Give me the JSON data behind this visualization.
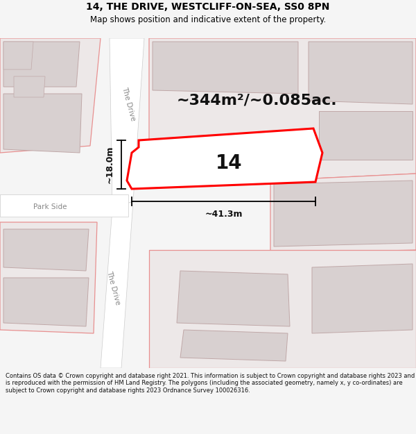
{
  "title": "14, THE DRIVE, WESTCLIFF-ON-SEA, SS0 8PN",
  "subtitle": "Map shows position and indicative extent of the property.",
  "footer": "Contains OS data © Crown copyright and database right 2021. This information is subject to Crown copyright and database rights 2023 and is reproduced with the permission of HM Land Registry. The polygons (including the associated geometry, namely x, y co-ordinates) are subject to Crown copyright and database rights 2023 Ordnance Survey 100026316.",
  "area_label": "~344m²/~0.085ac.",
  "number_label": "14",
  "width_label": "~41.3m",
  "height_label": "~18.0m",
  "street_label_upper": "The Drive",
  "street_label_lower": "The Drive",
  "street_label_parkside": "Park Side",
  "bg_color": "#f5f5f5",
  "map_bg": "#ede8e8",
  "building_fill": "#d8d0d0",
  "building_edge": "#c0a8a8",
  "road_color": "#ffffff",
  "road_edge": "#cccccc",
  "highlight_fill": "#ffffff",
  "highlight_edge": "#ff0000",
  "pink_line": "#e89090",
  "dim_color": "#000000",
  "text_color": "#888888",
  "label_color": "#111111",
  "title_color": "#000000",
  "footer_color": "#111111",
  "title_fontsize": 10,
  "subtitle_fontsize": 8.5,
  "area_fontsize": 16,
  "number_fontsize": 20,
  "street_fontsize": 7.5,
  "dim_fontsize": 9,
  "footer_fontsize": 6.0
}
